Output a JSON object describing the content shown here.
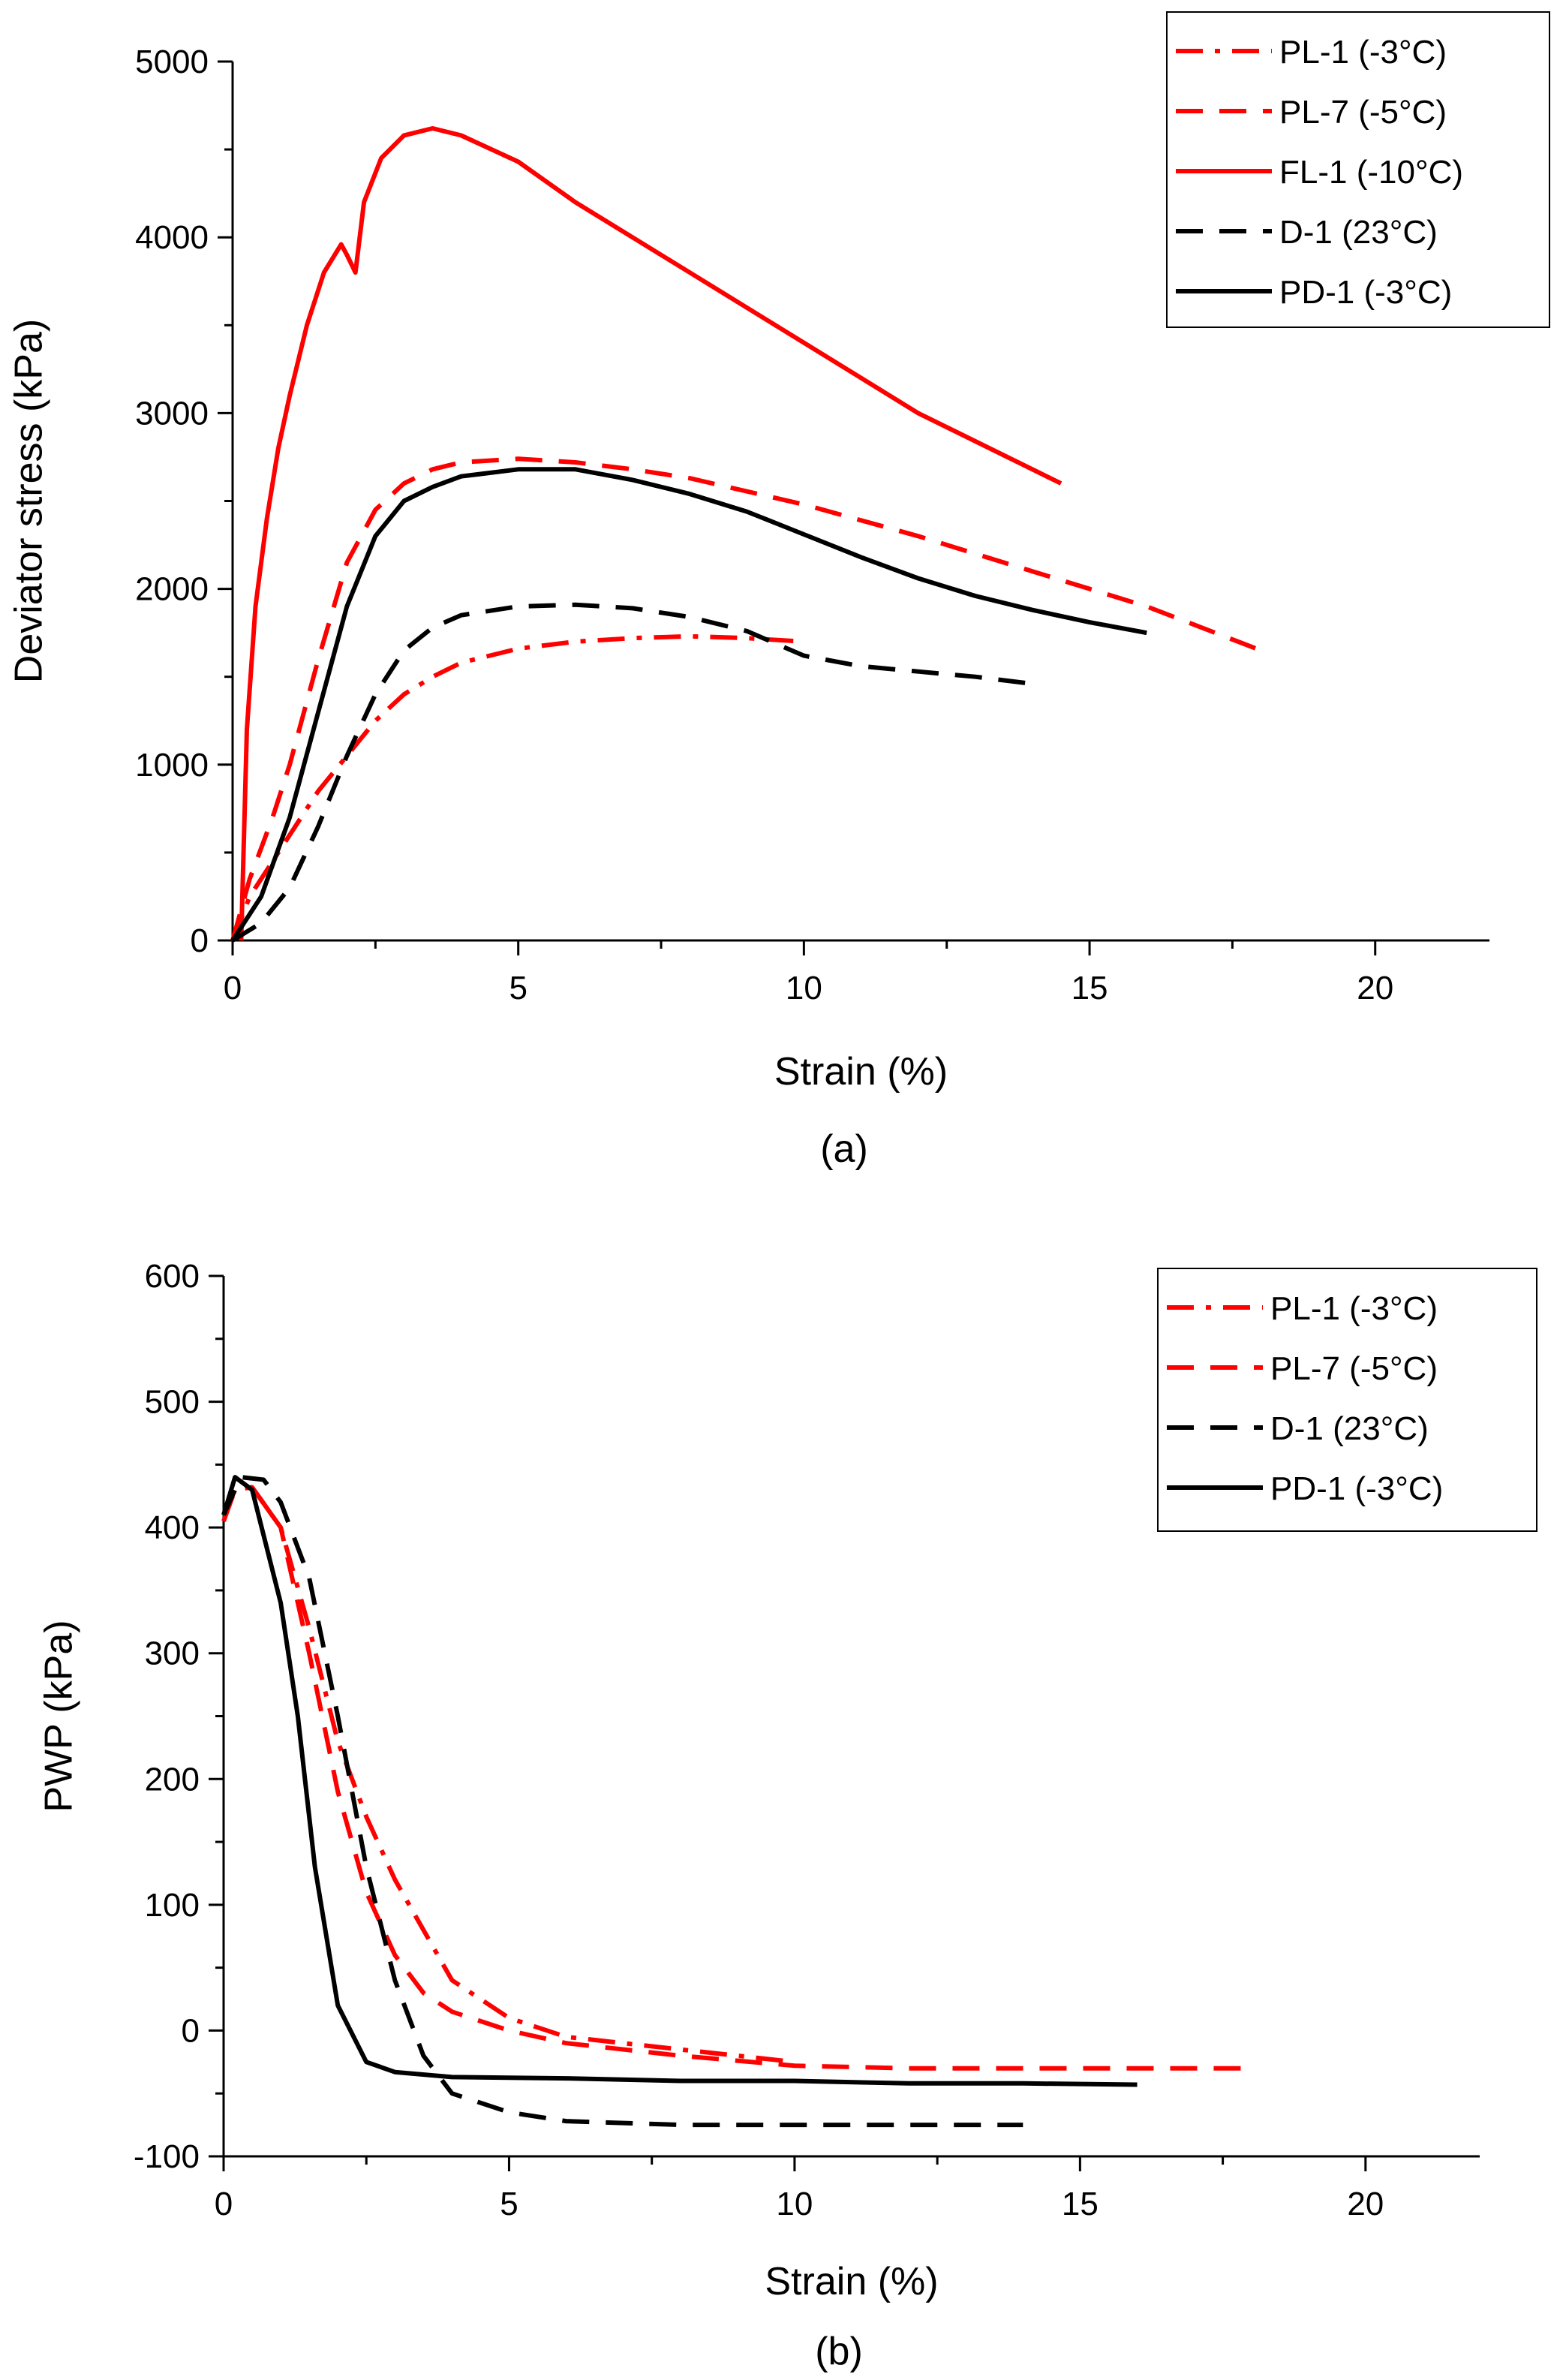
{
  "figure": {
    "label_a": "(a)",
    "label_b": "(b)"
  },
  "chart_data": [
    {
      "id": "a",
      "type": "line",
      "title": "",
      "xlabel": "Strain (%)",
      "ylabel": "Deviator stress (kPa)",
      "xlim": [
        0,
        22
      ],
      "ylim": [
        0,
        5000
      ],
      "xticks": [
        0,
        5,
        10,
        15,
        20
      ],
      "yticks": [
        0,
        1000,
        2000,
        3000,
        4000,
        5000
      ],
      "grid": false,
      "legend": "top-right",
      "series": [
        {
          "name": "PL-1 (-3°C)",
          "color": "#ff0000",
          "dash": "dashdot",
          "x": [
            0,
            0.3,
            0.7,
            1.0,
            1.5,
            2.0,
            2.5,
            3.0,
            3.5,
            4.0,
            5.0,
            6.0,
            7.0,
            8.0,
            9.0,
            10.0
          ],
          "y": [
            0,
            250,
            450,
            600,
            850,
            1050,
            1250,
            1400,
            1500,
            1580,
            1660,
            1700,
            1720,
            1730,
            1720,
            1700
          ]
        },
        {
          "name": "PL-7 (-5°C)",
          "color": "#ff0000",
          "dash": "dash",
          "x": [
            0,
            0.3,
            0.7,
            1.0,
            1.5,
            2.0,
            2.5,
            3.0,
            3.5,
            4.0,
            5.0,
            6.0,
            7.0,
            8.0,
            10.0,
            12.0,
            14.0,
            16.0,
            18.0
          ],
          "y": [
            0,
            350,
            700,
            1000,
            1600,
            2150,
            2450,
            2600,
            2680,
            2720,
            2740,
            2720,
            2680,
            2630,
            2480,
            2300,
            2100,
            1900,
            1650
          ]
        },
        {
          "name": "FL-1 (-10°C)",
          "color": "#ff0000",
          "dash": "solid",
          "x": [
            0.15,
            0.25,
            0.4,
            0.6,
            0.8,
            1.0,
            1.3,
            1.6,
            1.9,
            2.0,
            2.15,
            2.3,
            2.6,
            3.0,
            3.5,
            4.0,
            5.0,
            6.0,
            8.0,
            10.0,
            12.0,
            14.5
          ],
          "y": [
            0,
            1200,
            1900,
            2400,
            2800,
            3100,
            3500,
            3800,
            3960,
            3900,
            3800,
            4200,
            4450,
            4580,
            4620,
            4580,
            4430,
            4200,
            3800,
            3400,
            3000,
            2600
          ]
        },
        {
          "name": "D-1 (23°C)",
          "color": "#000000",
          "dash": "dash",
          "x": [
            0,
            0.5,
            1.0,
            1.5,
            2.0,
            2.5,
            3.0,
            3.5,
            4.0,
            5.0,
            6.0,
            7.0,
            8.0,
            9.0,
            10.0,
            11.0,
            12.0,
            13.0,
            14.0
          ],
          "y": [
            0,
            100,
            300,
            650,
            1050,
            1400,
            1650,
            1780,
            1850,
            1900,
            1910,
            1890,
            1840,
            1760,
            1620,
            1560,
            1530,
            1500,
            1460
          ]
        },
        {
          "name": "PD-1 (-3°C)",
          "color": "#000000",
          "dash": "solid",
          "x": [
            0,
            0.5,
            1.0,
            1.5,
            2.0,
            2.5,
            3.0,
            3.5,
            4.0,
            5.0,
            6.0,
            7.0,
            8.0,
            9.0,
            10.0,
            11.0,
            12.0,
            13.0,
            14.0,
            15.0,
            16.0
          ],
          "y": [
            0,
            250,
            700,
            1300,
            1900,
            2300,
            2500,
            2580,
            2640,
            2680,
            2680,
            2620,
            2540,
            2440,
            2310,
            2180,
            2060,
            1960,
            1880,
            1810,
            1750
          ]
        }
      ]
    },
    {
      "id": "b",
      "type": "line",
      "title": "",
      "xlabel": "Strain (%)",
      "ylabel": "PWP (kPa)",
      "xlim": [
        0,
        22
      ],
      "ylim": [
        -100,
        600
      ],
      "xticks": [
        0,
        5,
        10,
        15,
        20
      ],
      "yticks": [
        -100,
        0,
        100,
        200,
        300,
        400,
        500,
        600
      ],
      "grid": false,
      "legend": "top-right",
      "series": [
        {
          "name": "PL-1 (-3°C)",
          "color": "#ff0000",
          "dash": "dashdot",
          "x": [
            0,
            0.2,
            0.5,
            1.0,
            1.5,
            2.0,
            2.5,
            3.0,
            3.5,
            4.0,
            5.0,
            6.0,
            7.0,
            8.0,
            9.0,
            10.0
          ],
          "y": [
            410,
            430,
            432,
            400,
            320,
            230,
            170,
            120,
            80,
            40,
            10,
            -5,
            -10,
            -15,
            -20,
            -25
          ]
        },
        {
          "name": "PL-7 (-5°C)",
          "color": "#ff0000",
          "dash": "dash",
          "x": [
            0,
            0.2,
            0.5,
            1.0,
            1.5,
            2.0,
            2.5,
            3.0,
            3.5,
            4.0,
            5.0,
            6.0,
            8.0,
            10.0,
            12.0,
            14.0,
            16.0,
            18.0
          ],
          "y": [
            405,
            430,
            432,
            400,
            300,
            190,
            110,
            60,
            30,
            15,
            0,
            -10,
            -20,
            -28,
            -30,
            -30,
            -30,
            -30
          ]
        },
        {
          "name": "D-1 (23°C)",
          "color": "#000000",
          "dash": "dash",
          "x": [
            0,
            0.3,
            0.7,
            1.0,
            1.5,
            2.0,
            2.5,
            3.0,
            3.5,
            4.0,
            5.0,
            6.0,
            8.0,
            10.0,
            12.0,
            14.0
          ],
          "y": [
            410,
            440,
            438,
            420,
            360,
            250,
            130,
            40,
            -20,
            -50,
            -65,
            -72,
            -75,
            -75,
            -75,
            -75
          ]
        },
        {
          "name": "PD-1 (-3°C)",
          "color": "#000000",
          "dash": "solid",
          "x": [
            0,
            0.2,
            0.5,
            1.0,
            1.3,
            1.6,
            2.0,
            2.5,
            3.0,
            4.0,
            6.0,
            8.0,
            10.0,
            12.0,
            14.0,
            16.0
          ],
          "y": [
            410,
            440,
            430,
            340,
            250,
            130,
            20,
            -25,
            -33,
            -37,
            -38,
            -40,
            -40,
            -42,
            -42,
            -43
          ]
        }
      ]
    }
  ]
}
